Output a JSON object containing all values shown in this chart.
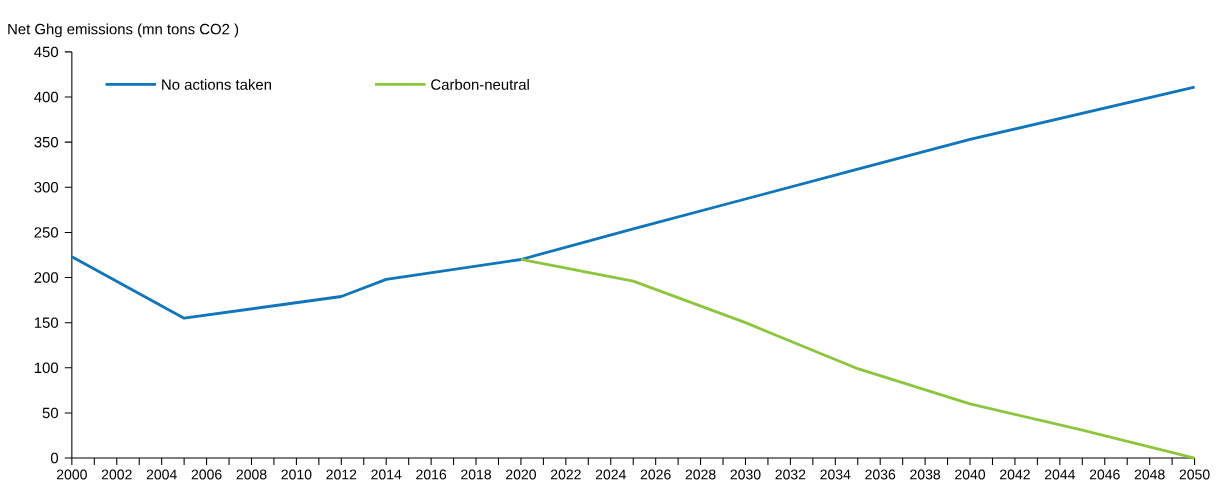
{
  "chart_data": {
    "type": "line",
    "ylabel": "Net Ghg emissions (mn tons CO2 )",
    "series": [
      {
        "name": "No actions taken",
        "color": "#0f75bc",
        "x": [
          2000,
          2005,
          2012,
          2014,
          2020,
          2025,
          2030,
          2035,
          2040,
          2045,
          2050
        ],
        "values": [
          223,
          155,
          179,
          198,
          220,
          254,
          287,
          320,
          353,
          382,
          411
        ]
      },
      {
        "name": "Carbon-neutral",
        "color": "#8cc63f",
        "x": [
          2020,
          2025,
          2030,
          2035,
          2040,
          2045,
          2050
        ],
        "values": [
          220,
          196,
          150,
          99,
          60,
          31,
          0
        ]
      }
    ],
    "xlim": [
      2000,
      2050
    ],
    "ylim": [
      0,
      450
    ],
    "xticks": [
      2000,
      {
        "value": 2001,
        "label": null
      },
      2002,
      {
        "value": 2003,
        "label": null
      },
      2004,
      {
        "value": 2005,
        "label": null
      },
      2006,
      {
        "value": 2007,
        "label": null
      },
      2008,
      {
        "value": 2009,
        "label": null
      },
      2010,
      {
        "value": 2011,
        "label": null
      },
      2012,
      {
        "value": 2013,
        "label": null
      },
      2014,
      {
        "value": 2015,
        "label": null
      },
      2016,
      {
        "value": 2017,
        "label": null
      },
      2018,
      {
        "value": 2019,
        "label": null
      },
      2020,
      {
        "value": 2021,
        "label": null
      },
      2022,
      {
        "value": 2023,
        "label": null
      },
      2024,
      {
        "value": 2025,
        "label": null
      },
      2026,
      {
        "value": 2027,
        "label": null
      },
      2028,
      {
        "value": 2029,
        "label": null
      },
      2030,
      {
        "value": 2031,
        "label": null
      },
      2032,
      {
        "value": 2033,
        "label": null
      },
      2034,
      {
        "value": 2035,
        "label": null
      },
      2036,
      {
        "value": 2037,
        "label": null
      },
      2038,
      {
        "value": 2039,
        "label": null
      },
      2040,
      {
        "value": 2041,
        "label": null
      },
      2042,
      {
        "value": 2043,
        "label": null
      },
      2044,
      {
        "value": 2045,
        "label": null
      },
      2046,
      {
        "value": 2047,
        "label": null
      },
      2048,
      {
        "value": 2049,
        "label": null
      },
      2050
    ],
    "yticks": [
      0,
      50,
      100,
      150,
      200,
      250,
      300,
      350,
      400,
      450
    ],
    "grid": false,
    "legend": "top left",
    "marker": "none",
    "line_style": "solid"
  }
}
